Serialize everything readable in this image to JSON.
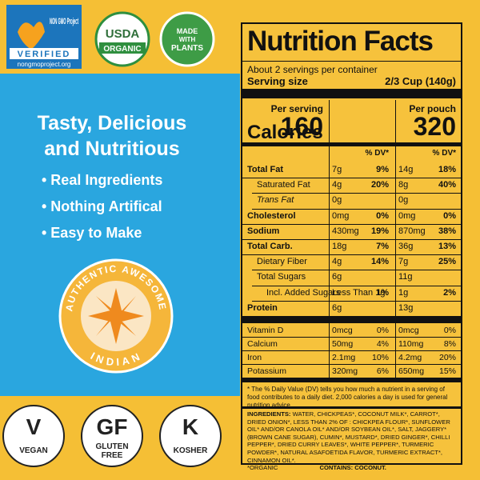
{
  "badges": {
    "non_gmo": {
      "title": "NON GMO Project",
      "verified": "VERIFIED",
      "url": "nongmoproject.org"
    },
    "usda": {
      "top": "USDA",
      "bottom": "ORGANIC"
    },
    "plants": [
      "MADE",
      "WITH",
      "PLANTS"
    ]
  },
  "headline": [
    "Tasty, Delicious",
    "and Nutritious"
  ],
  "bullets": [
    "• Real Ingredients",
    "• Nothing Artifical",
    "• Easy to Make"
  ],
  "seal": {
    "top_left": "AUTHENTIC",
    "top_right": "AWESOME",
    "bottom": "INDIAN"
  },
  "diet_icons": [
    {
      "symbol": "V",
      "label": "VEGAN"
    },
    {
      "symbol": "GF",
      "label": "GLUTEN FREE"
    },
    {
      "symbol": "K",
      "label": "KOSHER"
    }
  ],
  "nutrition": {
    "title": "Nutrition Facts",
    "servings": "About 2 servings per container",
    "serving_size_label": "Serving size",
    "serving_size": "2/3 Cup (140g)",
    "column_headers": [
      "Per serving",
      "Per pouch"
    ],
    "calories_label": "Calories",
    "calories": [
      160,
      320
    ],
    "dv_header": "% DV*",
    "rows": [
      {
        "name": "Total Fat",
        "bold": true,
        "indent": 0,
        "cells": [
          "7g",
          "9%",
          "14g",
          "18%"
        ]
      },
      {
        "name": "Saturated Fat",
        "bold": false,
        "indent": 1,
        "cells": [
          "4g",
          "20%",
          "8g",
          "40%"
        ]
      },
      {
        "name": "Trans Fat",
        "bold": false,
        "indent": 1,
        "italic": true,
        "cells": [
          "0g",
          null,
          "0g",
          null
        ]
      },
      {
        "name": "Cholesterol",
        "bold": true,
        "indent": 0,
        "cells": [
          "0mg",
          "0%",
          "0mg",
          "0%"
        ]
      },
      {
        "name": "Sodium",
        "bold": true,
        "indent": 0,
        "cells": [
          "430mg",
          "19%",
          "870mg",
          "38%"
        ]
      },
      {
        "name": "Total Carb.",
        "bold": true,
        "indent": 0,
        "cells": [
          "18g",
          "7%",
          "36g",
          "13%"
        ]
      },
      {
        "name": "Dietary Fiber",
        "bold": false,
        "indent": 1,
        "cells": [
          "4g",
          "14%",
          "7g",
          "25%"
        ]
      },
      {
        "name": "Total Sugars",
        "bold": false,
        "indent": 1,
        "cells": [
          "6g",
          null,
          "11g",
          null
        ]
      },
      {
        "name": "Incl. Added Sugars",
        "bold": false,
        "indent": 2,
        "cells": [
          "Less Than 1g",
          "1%",
          "1g",
          "2%"
        ]
      },
      {
        "name": "Protein",
        "bold": true,
        "indent": 0,
        "cells": [
          "6g",
          null,
          "13g",
          null
        ]
      }
    ],
    "vitamins": [
      {
        "name": "Vitamin D",
        "cells": [
          "0mcg",
          "0%",
          "0mcg",
          "0%"
        ]
      },
      {
        "name": "Calcium",
        "cells": [
          "50mg",
          "4%",
          "110mg",
          "8%"
        ]
      },
      {
        "name": "Iron",
        "cells": [
          "2.1mg",
          "10%",
          "4.2mg",
          "20%"
        ]
      },
      {
        "name": "Potassium",
        "cells": [
          "320mg",
          "6%",
          "650mg",
          "15%"
        ]
      }
    ],
    "footnote": "* The % Daily Value (DV) tells you how much a nutrient in a serving of food contributes to a daily diet. 2,000 calories a day is used for general nutrition advice.",
    "ingredients_label": "INGREDIENTS:",
    "ingredients": "WATER, CHICKPEAS*, COCONUT MILK*, CARROT*, DRIED ONION*, LESS THAN 2% OF : CHICKPEA FLOUR*, SUNFLOWER OIL* AND/OR CANOLA OIL* AND/OR SOYBEAN OIL*, SALT, JAGGERY*(BROWN CANE SUGAR), CUMIN*, MUSTARD*, DRIED GINGER*, CHILLI PEPPER*, DRIED CURRY LEAVES*, WHITE PEPPER*, TURMERIC POWDER*, NATURAL ASAFOETIDA FLAVOR, TURMERIC EXTRACT*, CINNAMON OIL*.",
    "organic_note": "*ORGANIC",
    "contains": "CONTAINS: COCONUT."
  }
}
